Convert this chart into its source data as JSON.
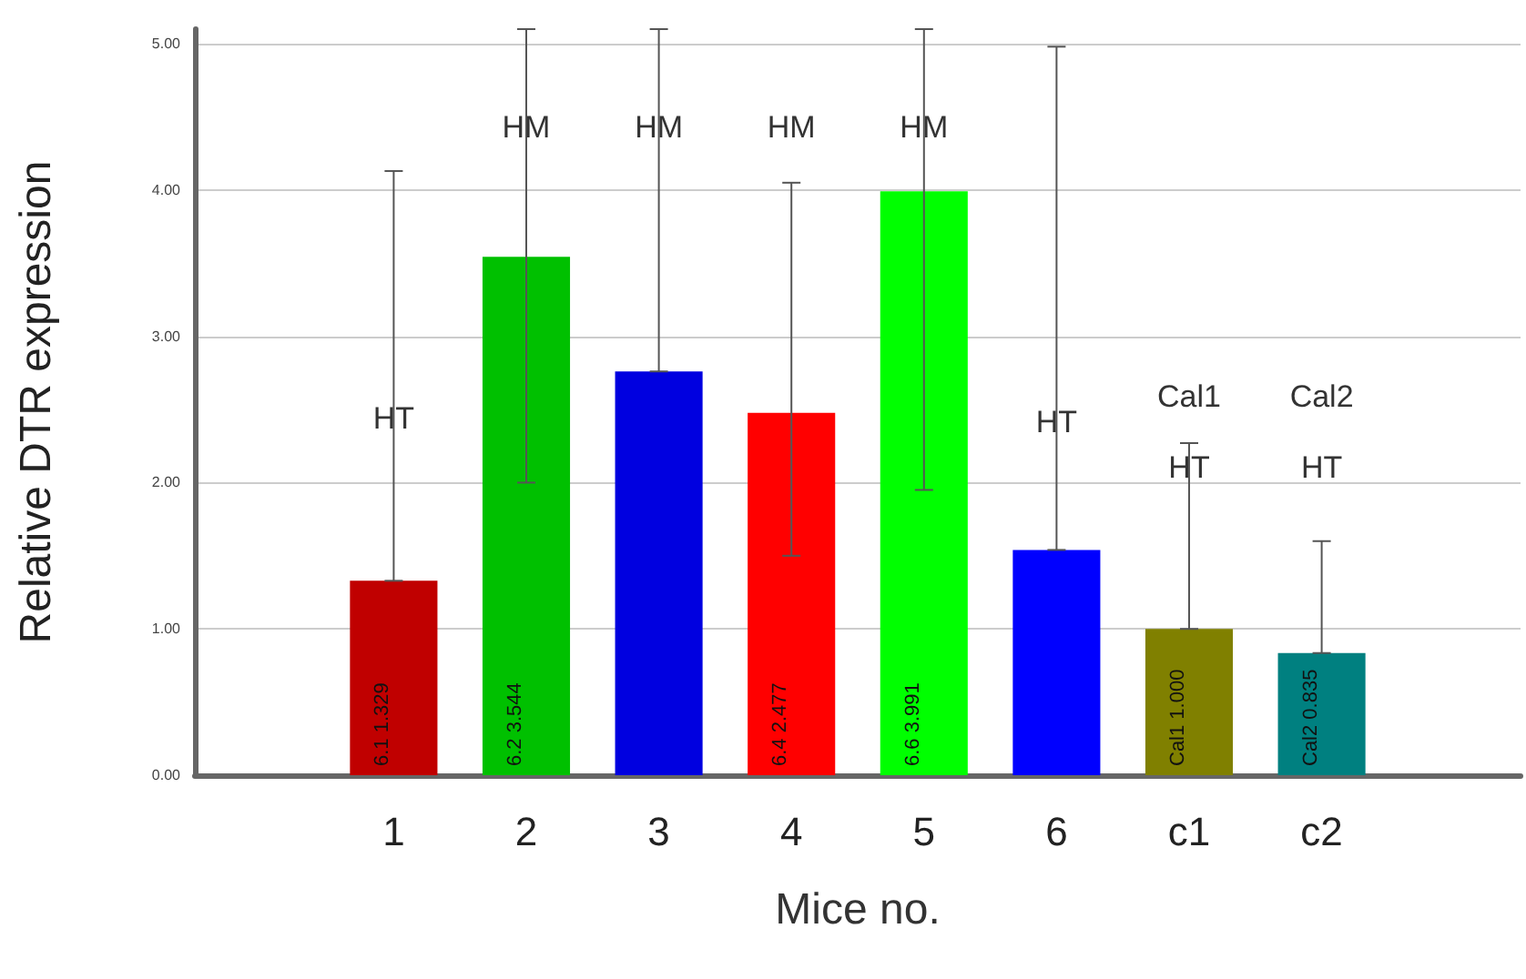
{
  "chart_data": {
    "type": "bar",
    "xlabel": "Mice no.",
    "ylabel": "Relative DTR expression",
    "categories": [
      null,
      "1",
      "2",
      "3",
      "4",
      "5",
      "6",
      "c1",
      "c2",
      null
    ],
    "values": [
      null,
      1.329,
      3.544,
      2.76,
      2.477,
      3.991,
      1.54,
      1.0,
      0.835,
      null
    ],
    "colors": [
      "#c00000",
      "#c00000",
      "#00c000",
      "#0000e0",
      "#ff0000",
      "#00ff00",
      "#0000ff",
      "#808000",
      "#008080",
      "#008080"
    ],
    "value_labels": [
      null,
      "6.1 1.329",
      "6.2 3.544",
      null,
      "6.4 2.477",
      "6.6 3.991",
      null,
      "Cal1 1.000",
      "Cal2 0.835",
      null
    ],
    "errors": [
      null,
      [
        1.329,
        4.13
      ],
      [
        2.0,
        5.1
      ],
      [
        2.76,
        5.1
      ],
      [
        1.5,
        4.05
      ],
      [
        1.95,
        5.1
      ],
      [
        1.54,
        4.98
      ],
      [
        1.0,
        2.27
      ],
      [
        0.835,
        1.6
      ],
      null
    ],
    "ylim": [
      0,
      5.1
    ],
    "yticks": [
      {
        "value": 0,
        "label": "0.00"
      },
      {
        "value": 1,
        "label": "1.00"
      },
      {
        "value": 2,
        "label": "2.00"
      },
      {
        "value": 3,
        "label": "3.00"
      },
      {
        "value": 4,
        "label": "4.00"
      },
      {
        "value": 5,
        "label": "5.00"
      }
    ],
    "grid": "y",
    "annotations": [
      "HT",
      "HM",
      "HM",
      "HM",
      "HM",
      "HT",
      "Cal1",
      "HT",
      "Cal2",
      "HT"
    ]
  }
}
